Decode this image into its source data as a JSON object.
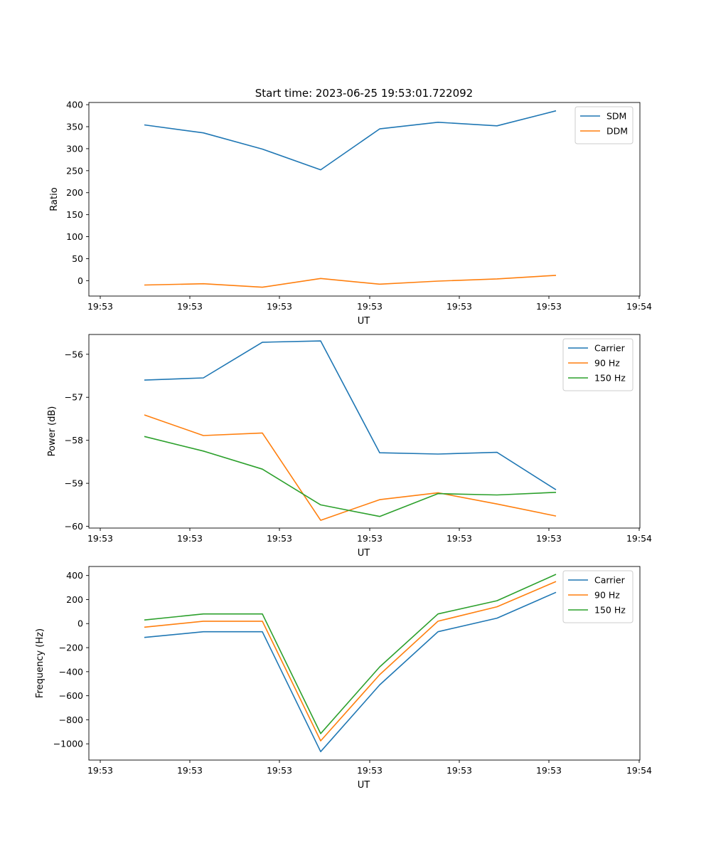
{
  "figure": {
    "suptitle": "Start time: 2023-06-25 19:53:01.722092"
  },
  "chart_data": [
    {
      "type": "line",
      "xlabel": "UT",
      "ylabel": "Ratio",
      "xticks": [
        "19:53",
        "19:53",
        "19:53",
        "19:53",
        "19:53",
        "19:53",
        "19:54"
      ],
      "ylim": [
        -35,
        405
      ],
      "yticks": [
        0,
        50,
        100,
        150,
        200,
        250,
        300,
        350,
        400
      ],
      "yticklabels": [
        "0",
        "50",
        "100",
        "150",
        "200",
        "250",
        "300",
        "350",
        "400"
      ],
      "legend_position": "top-right",
      "series": [
        {
          "name": "SDM",
          "color": "#1f77b4",
          "values": [
            354,
            336,
            299,
            252,
            345,
            360,
            352,
            386
          ]
        },
        {
          "name": "DDM",
          "color": "#ff7f0e",
          "values": [
            -10,
            -7,
            -15,
            5,
            -8,
            -1,
            4,
            12
          ]
        }
      ]
    },
    {
      "type": "line",
      "xlabel": "UT",
      "ylabel": "Power (dB)",
      "xticks": [
        "19:53",
        "19:53",
        "19:53",
        "19:53",
        "19:53",
        "19:53",
        "19:54"
      ],
      "ylim": [
        -60.04,
        -55.54
      ],
      "yticks": [
        -60,
        -59,
        -58,
        -57,
        -56
      ],
      "yticklabels": [
        "−60",
        "−59",
        "−58",
        "−57",
        "−56"
      ],
      "legend_position": "top-right",
      "series": [
        {
          "name": "Carrier",
          "color": "#1f77b4",
          "values": [
            -56.6,
            -56.55,
            -55.72,
            -55.69,
            -58.29,
            -58.32,
            -58.28,
            -59.15
          ]
        },
        {
          "name": "90 Hz",
          "color": "#ff7f0e",
          "values": [
            -57.41,
            -57.89,
            -57.83,
            -59.86,
            -59.38,
            -59.22,
            -59.48,
            -59.76
          ]
        },
        {
          "name": "150 Hz",
          "color": "#2ca02c",
          "values": [
            -57.91,
            -58.25,
            -58.67,
            -59.5,
            -59.77,
            -59.24,
            -59.27,
            -59.21
          ]
        }
      ]
    },
    {
      "type": "line",
      "xlabel": "UT",
      "ylabel": "Frequency (Hz)",
      "xticks": [
        "19:53",
        "19:53",
        "19:53",
        "19:53",
        "19:53",
        "19:53",
        "19:54"
      ],
      "ylim": [
        -1135,
        475
      ],
      "yticks": [
        -1000,
        -800,
        -600,
        -400,
        -200,
        0,
        200,
        400
      ],
      "yticklabels": [
        "−1000",
        "−800",
        "−600",
        "−400",
        "−200",
        "0",
        "200",
        "400"
      ],
      "legend_position": "top-right",
      "series": [
        {
          "name": "Carrier",
          "color": "#1f77b4",
          "values": [
            -115,
            -68,
            -68,
            -1065,
            -510,
            -68,
            45,
            260
          ]
        },
        {
          "name": "90 Hz",
          "color": "#ff7f0e",
          "values": [
            -30,
            20,
            20,
            -975,
            -425,
            20,
            140,
            350
          ]
        },
        {
          "name": "150 Hz",
          "color": "#2ca02c",
          "values": [
            30,
            80,
            80,
            -915,
            -360,
            80,
            190,
            410
          ]
        }
      ]
    }
  ]
}
